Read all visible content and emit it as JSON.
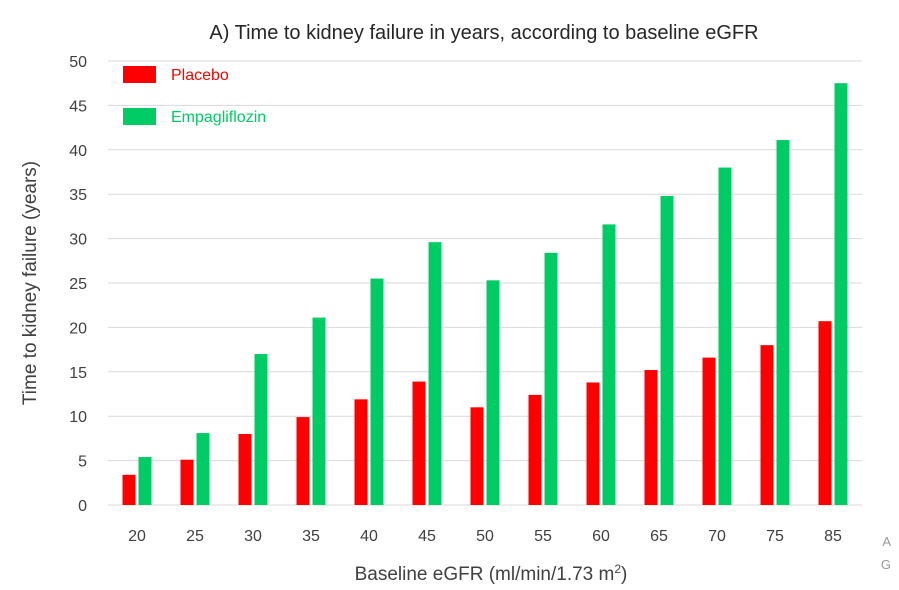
{
  "chart_data": {
    "type": "bar",
    "title": "A) Time to kidney failure in years, according to baseline eGFR",
    "xlabel": "Baseline eGFR (ml/min/1.73 m",
    "xlabel_superscript": "2",
    "xlabel_suffix": ")",
    "ylabel": "Time to kidney failure (years)",
    "ylim": [
      0,
      50
    ],
    "yticks": [
      "0",
      "5",
      "10",
      "15",
      "20",
      "25",
      "30",
      "35",
      "40",
      "45",
      "50"
    ],
    "grid": true,
    "legend_position": "top-left",
    "categories": [
      "20",
      "25",
      "30",
      "35",
      "40",
      "45",
      "50",
      "55",
      "60",
      "65",
      "70",
      "75",
      "85"
    ],
    "series": [
      {
        "name": "Placebo",
        "color": "#ff0000",
        "values": [
          3.4,
          5.1,
          8.0,
          9.9,
          11.9,
          13.9,
          11.0,
          12.4,
          13.8,
          15.2,
          16.6,
          18.0,
          20.7
        ]
      },
      {
        "name": "Empagliflozin",
        "color": "#00cc66",
        "values": [
          5.4,
          8.1,
          17.0,
          21.1,
          25.5,
          29.6,
          25.3,
          28.4,
          31.6,
          34.8,
          38.0,
          41.1,
          47.5
        ]
      }
    ]
  },
  "corner_marks": [
    "A",
    "G"
  ]
}
